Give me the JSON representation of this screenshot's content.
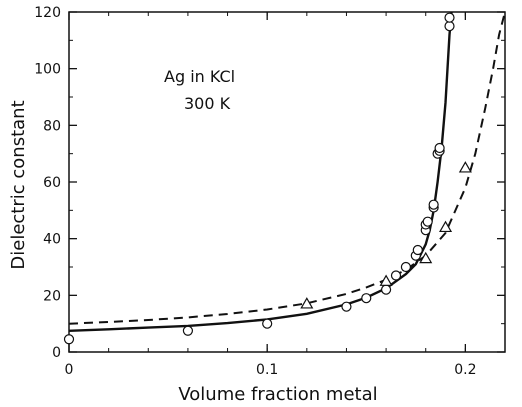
{
  "chart_data": {
    "type": "scatter",
    "title": "",
    "xlabel": "Volume fraction metal",
    "ylabel": "Dielectric constant",
    "xlim": [
      0,
      0.22
    ],
    "ylim": [
      0,
      120
    ],
    "x_ticks": [
      0,
      0.1,
      0.2
    ],
    "x_tick_labels": [
      "0",
      "0.1",
      "0.2"
    ],
    "y_ticks": [
      0,
      20,
      40,
      60,
      80,
      100,
      120
    ],
    "y_tick_labels": [
      "0",
      "20",
      "40",
      "60",
      "80",
      "100",
      "120"
    ],
    "grid": false,
    "annotations": [
      "Ag in KCl",
      "300 K"
    ],
    "series": [
      {
        "marker": "circle",
        "style": "points",
        "x": [
          0.0,
          0.06,
          0.1,
          0.14,
          0.15,
          0.16,
          0.165,
          0.17,
          0.175,
          0.176,
          0.18,
          0.18,
          0.181,
          0.184,
          0.184,
          0.186,
          0.187,
          0.187,
          0.192,
          0.192
        ],
        "y": [
          4.5,
          7.5,
          10,
          16,
          19,
          22,
          27,
          30,
          34,
          36,
          43,
          45,
          46,
          51,
          52,
          70,
          71,
          72,
          115,
          118
        ]
      },
      {
        "marker": "triangle",
        "style": "points",
        "x": [
          0.12,
          0.16,
          0.18,
          0.19,
          0.2
        ],
        "y": [
          17,
          25,
          33,
          44,
          65
        ]
      },
      {
        "style": "solid-line",
        "x": [
          0,
          0.02,
          0.04,
          0.06,
          0.08,
          0.1,
          0.12,
          0.14,
          0.15,
          0.16,
          0.17,
          0.175,
          0.18,
          0.182,
          0.184,
          0.186,
          0.188,
          0.19,
          0.191,
          0.192,
          0.193
        ],
        "y": [
          7.5,
          8,
          8.6,
          9.2,
          10.2,
          11.5,
          13.5,
          16.8,
          19.2,
          22.5,
          27.5,
          31,
          38,
          43,
          50,
          60,
          72,
          88,
          100,
          112,
          120
        ]
      },
      {
        "style": "dashed-line",
        "x": [
          0,
          0.02,
          0.04,
          0.06,
          0.08,
          0.1,
          0.12,
          0.14,
          0.15,
          0.16,
          0.17,
          0.18,
          0.19,
          0.2,
          0.205,
          0.21,
          0.214,
          0.217,
          0.22
        ],
        "y": [
          10,
          10.6,
          11.3,
          12.2,
          13.4,
          15,
          17.2,
          20.5,
          22.8,
          25.5,
          29,
          34,
          42,
          58,
          70,
          86,
          100,
          112,
          120
        ]
      }
    ]
  }
}
